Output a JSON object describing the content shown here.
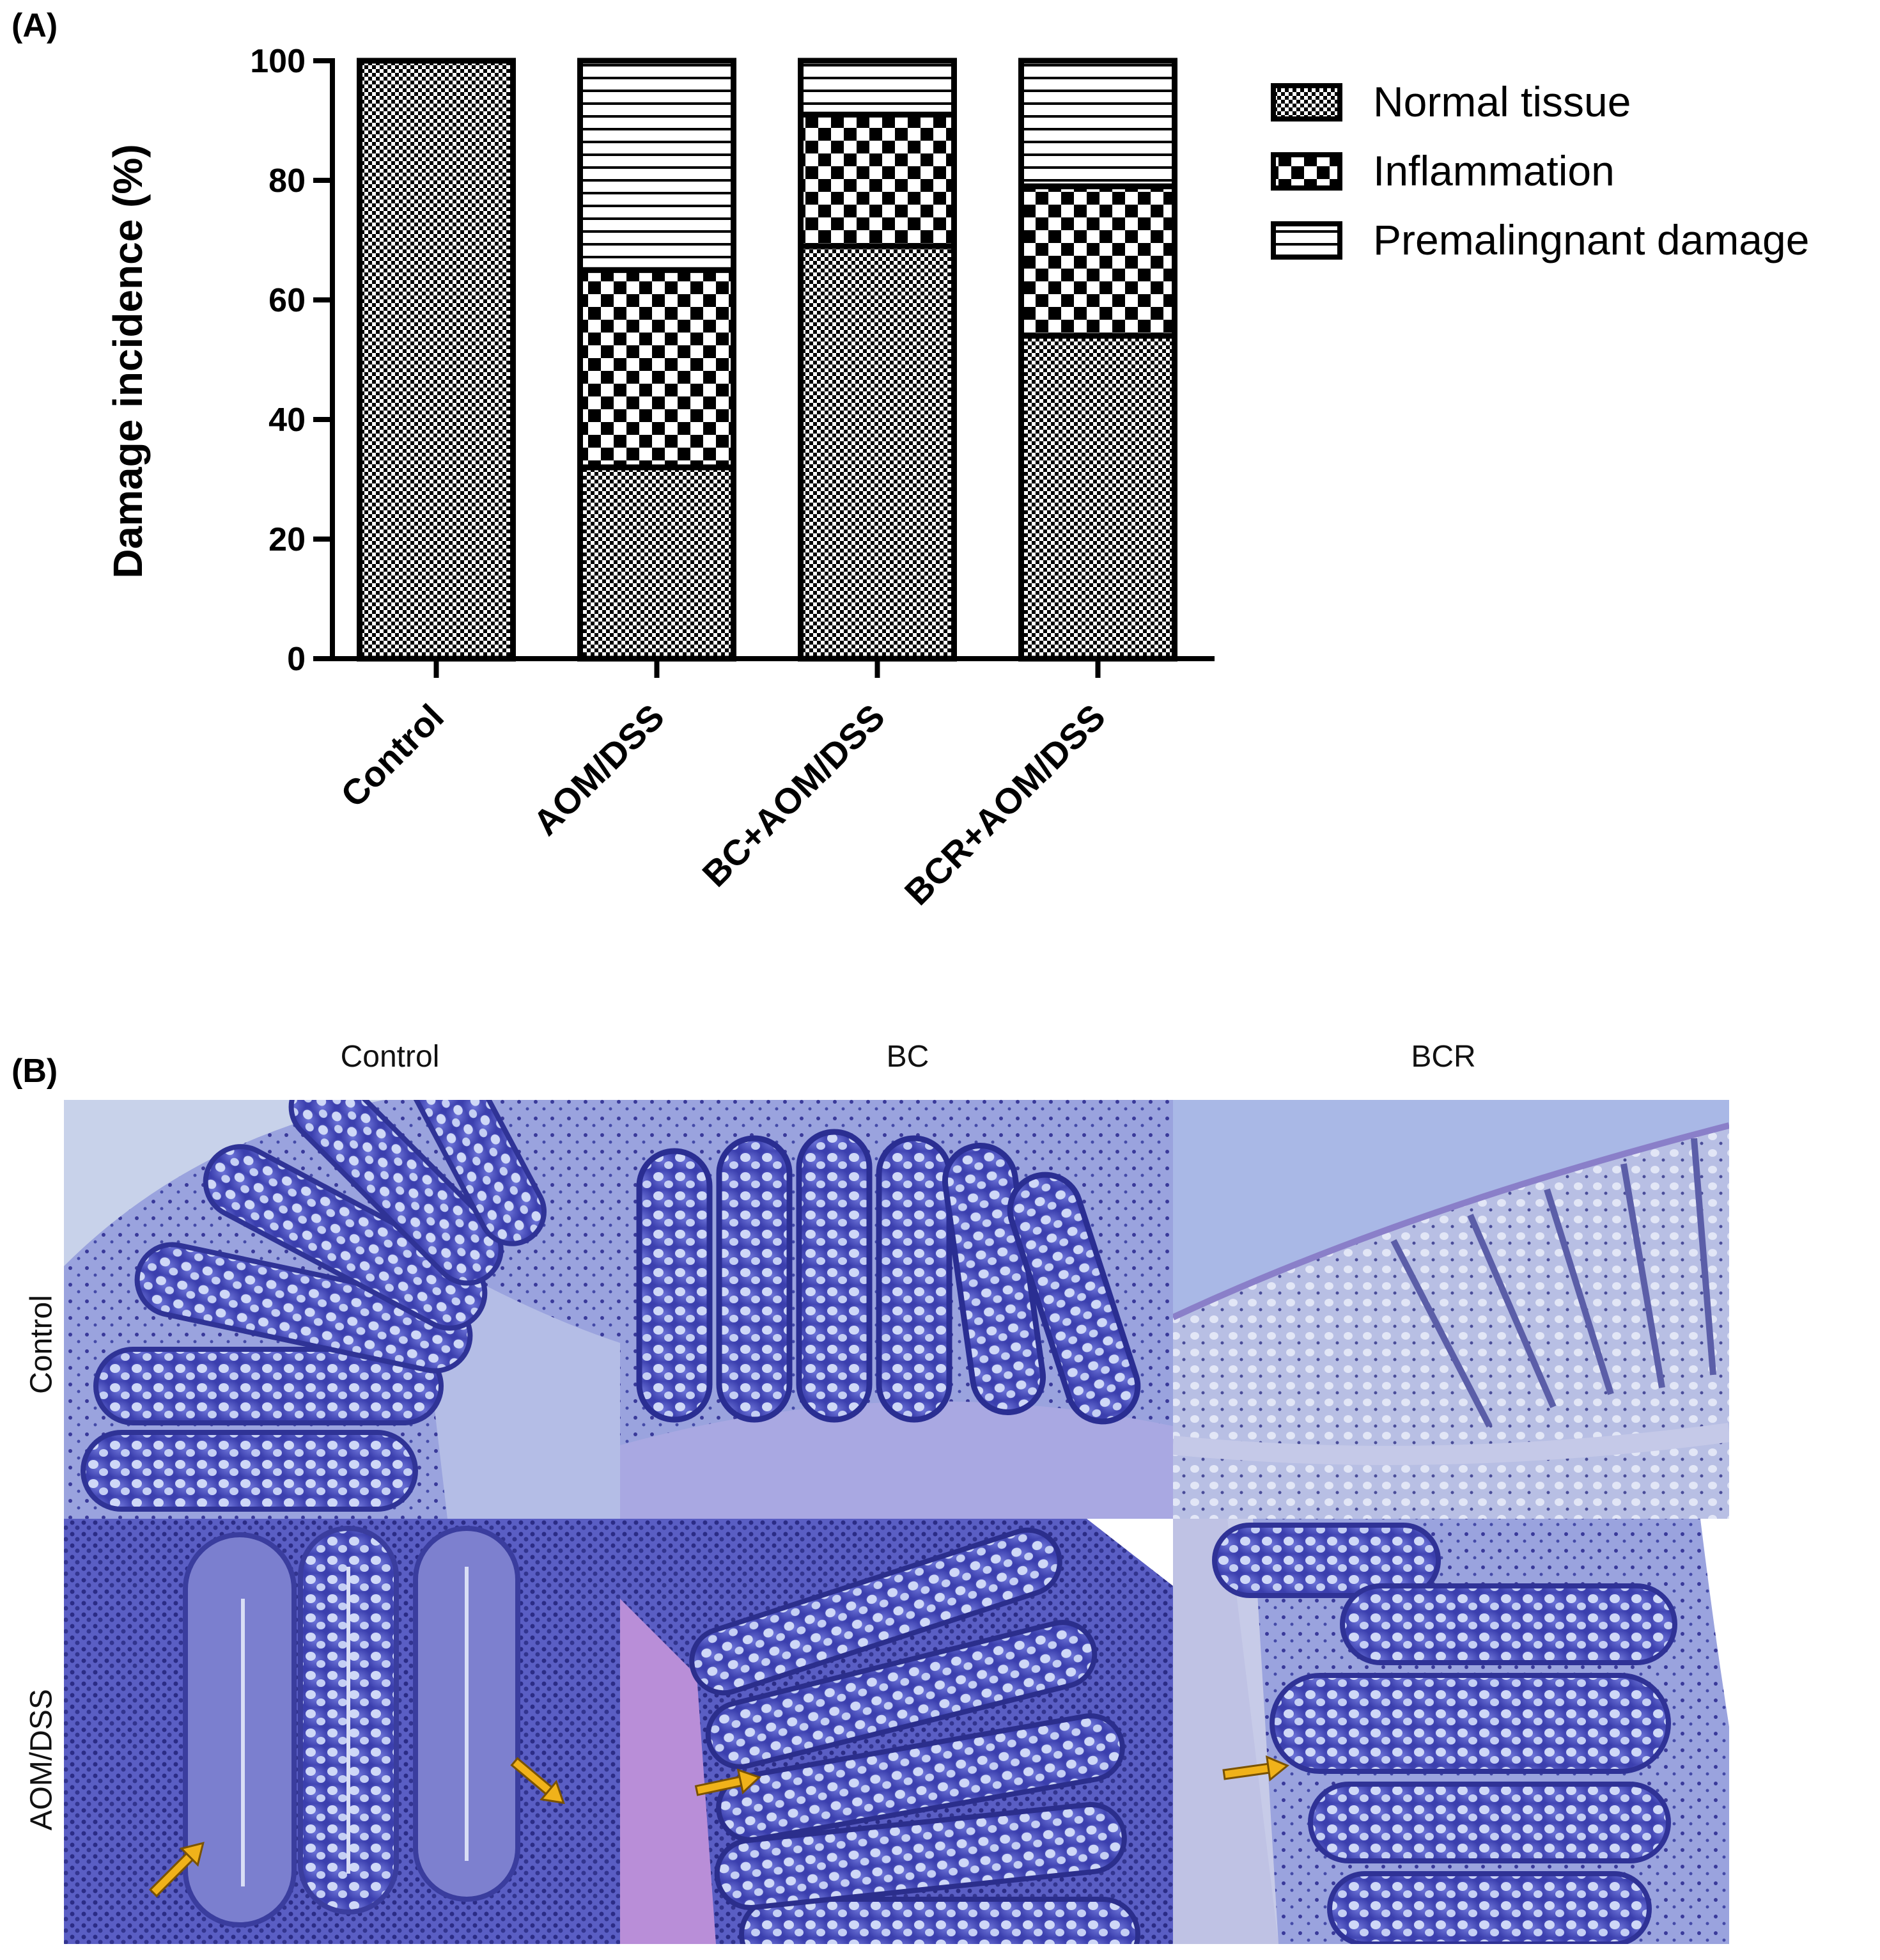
{
  "panel_a": {
    "label": "(A)"
  },
  "panel_b": {
    "label": "(B)",
    "columns": [
      "Control",
      "BC",
      "BCR"
    ],
    "rows": [
      "Control",
      "AOM/DSS"
    ],
    "colors": {
      "tissue_bg": "#b9c3ea",
      "crypt": "#4a4fc0",
      "goblet": "#d6def8",
      "arrow": "#f0b21a",
      "lumen_bcr": "#a9b8e6"
    }
  },
  "chart_data": {
    "type": "bar",
    "stacked": true,
    "title": "",
    "xlabel": "",
    "ylabel": "Damage incidence (%)",
    "ylim": [
      0,
      100
    ],
    "yticks": [
      0,
      20,
      40,
      60,
      80,
      100
    ],
    "categories": [
      "Control",
      "AOM/DSS",
      "BC+AOM/DSS",
      "BCR+AOM/DSS"
    ],
    "series": [
      {
        "name": "Normal tissue",
        "pattern": "fine-checker",
        "values": [
          100,
          32,
          69,
          54
        ]
      },
      {
        "name": "Inflammation",
        "pattern": "coarse-checker",
        "values": [
          0,
          33,
          22,
          25
        ]
      },
      {
        "name": "Premalingnant damage",
        "pattern": "horizontal-lines",
        "values": [
          0,
          35,
          9,
          21
        ]
      }
    ],
    "legend": "top-right",
    "grid": false
  }
}
